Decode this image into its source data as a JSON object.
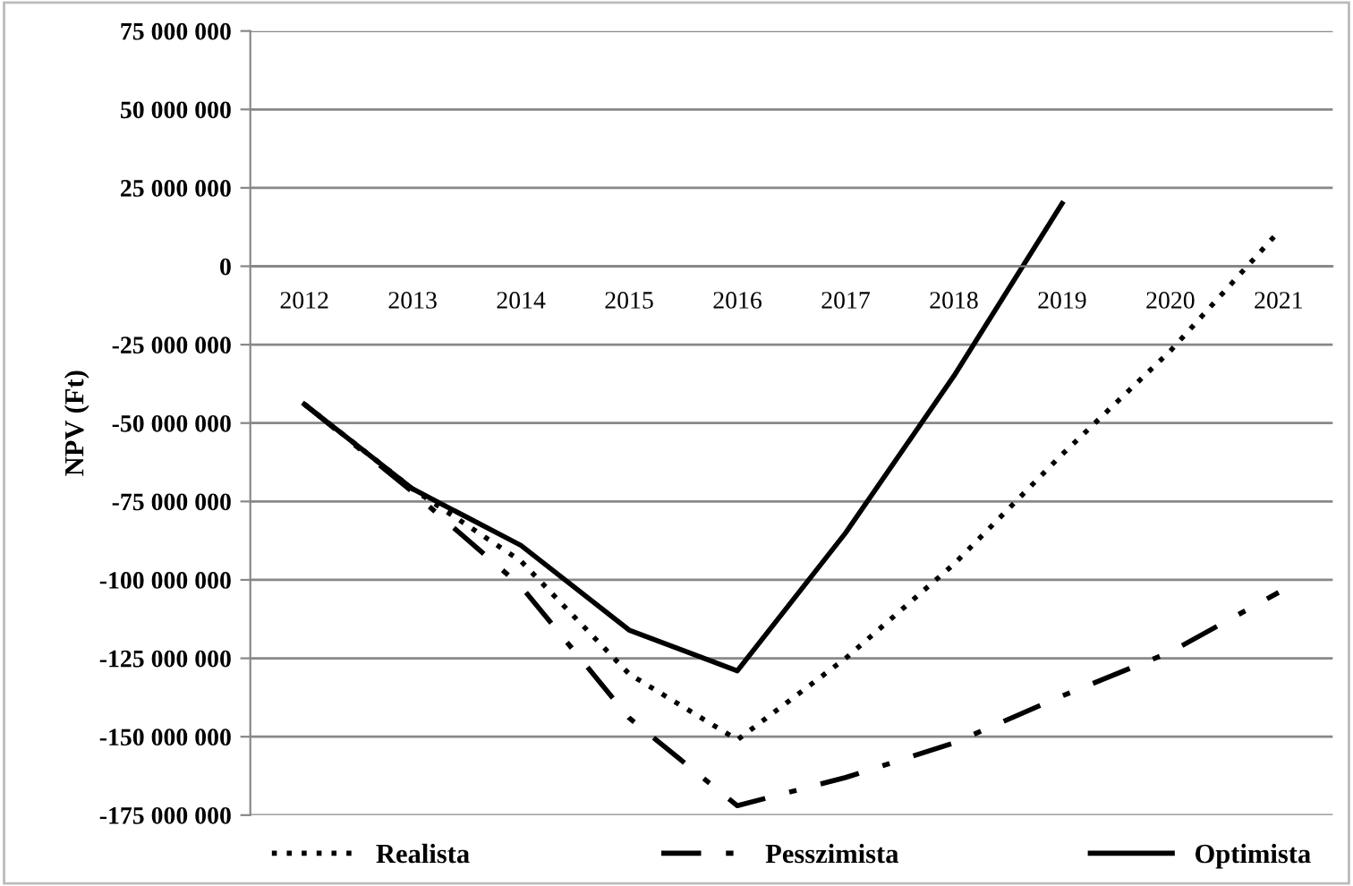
{
  "chart_data": {
    "type": "line",
    "ylabel": "NPV (Ft)",
    "categories": [
      "2012",
      "2013",
      "2014",
      "2015",
      "2016",
      "2017",
      "2018",
      "2019",
      "2020",
      "2021"
    ],
    "series": [
      {
        "name": "Realista",
        "color": "#000000",
        "line_style": "dotted",
        "values": [
          -44000000,
          -71000000,
          -94000000,
          -130000000,
          -151000000,
          -125000000,
          -95000000,
          -60000000,
          -27000000,
          11000000
        ]
      },
      {
        "name": "Pesszimista",
        "color": "#000000",
        "line_style": "dashdot",
        "values": [
          -44000000,
          -72000000,
          -102000000,
          -144000000,
          -172000000,
          -163000000,
          -152000000,
          -137000000,
          -123000000,
          -104000000
        ]
      },
      {
        "name": "Optimista",
        "color": "#000000",
        "line_style": "solid",
        "values": [
          -44000000,
          -71000000,
          -89000000,
          -116000000,
          -129000000,
          -85000000,
          -35000000,
          20000000,
          null,
          null
        ]
      }
    ],
    "ylim": [
      -175000000,
      75000000
    ],
    "yticks": [
      {
        "value": 75000000,
        "label": "75 000 000"
      },
      {
        "value": 50000000,
        "label": "50 000 000"
      },
      {
        "value": 25000000,
        "label": "25 000 000"
      },
      0,
      {
        "value": -25000000,
        "label": "-25 000 000"
      },
      {
        "value": -50000000,
        "label": "-50 000 000"
      },
      {
        "value": -75000000,
        "label": "-75 000 000"
      },
      {
        "value": -100000000,
        "label": "-100 000 000"
      },
      {
        "value": -125000000,
        "label": "-125 000 000"
      },
      {
        "value": -150000000,
        "label": "-150 000 000"
      },
      {
        "value": -175000000,
        "label": "-175 000 000"
      }
    ],
    "grid": "y",
    "legend": "bottom",
    "marker": "none"
  }
}
